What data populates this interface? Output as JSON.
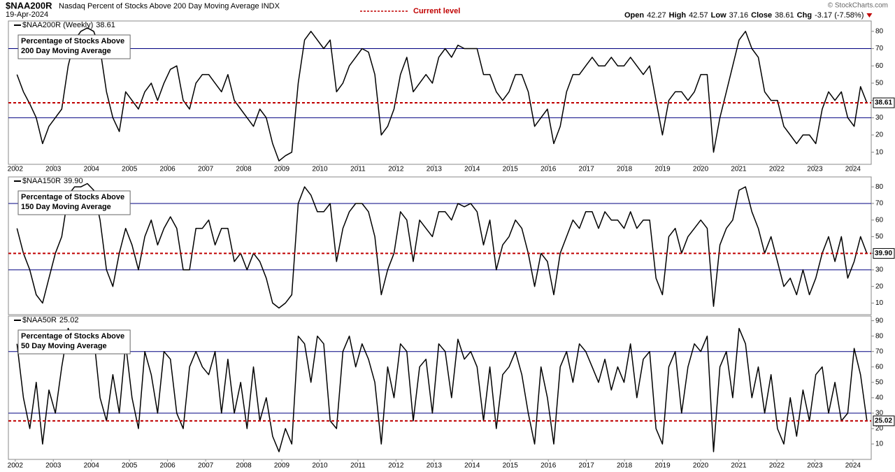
{
  "header": {
    "symbol": "$NAA200R",
    "description": "Nasdaq Percent of Stocks Above 200 Day Moving Average INDX",
    "date": "19-Apr-2024",
    "legend": "Current level",
    "stats": [
      {
        "label": "Open",
        "value": 42.27
      },
      {
        "label": "High",
        "value": 42.57
      },
      {
        "label": "Low",
        "value": 37.16
      },
      {
        "label": "Close",
        "value": 38.61
      }
    ],
    "change_label": "Chg",
    "change": "-3.17 (-7.58%)",
    "credit": "© StockCharts.com"
  },
  "chart_data": [
    {
      "type": "line",
      "name": "$NAA200R (Weekly)",
      "current_label": "38.61",
      "annotation": [
        "Percentage of Stocks Above",
        "200 Day Moving Average"
      ],
      "color": "#000000",
      "hlines": [
        30,
        70
      ],
      "hline_color": "#000080",
      "current_color": "#c00000",
      "xlim": [
        2001.82,
        2024.48
      ],
      "xticks": [
        2002,
        2003,
        2004,
        2005,
        2006,
        2007,
        2008,
        2009,
        2010,
        2011,
        2012,
        2013,
        2014,
        2015,
        2016,
        2017,
        2018,
        2019,
        2020,
        2021,
        2022,
        2023,
        2024
      ],
      "ylim": [
        3,
        86
      ],
      "yticks": [
        10,
        20,
        30,
        40,
        50,
        60,
        70,
        80
      ],
      "values": [
        55,
        45,
        38,
        30,
        15,
        25,
        30,
        35,
        60,
        75,
        80,
        82,
        80,
        70,
        45,
        30,
        22,
        45,
        40,
        35,
        45,
        50,
        40,
        50,
        58,
        60,
        40,
        35,
        50,
        55,
        55,
        50,
        45,
        55,
        40,
        35,
        30,
        25,
        35,
        30,
        15,
        5,
        8,
        10,
        50,
        75,
        80,
        75,
        70,
        75,
        45,
        50,
        60,
        65,
        70,
        68,
        55,
        20,
        25,
        35,
        55,
        65,
        45,
        50,
        55,
        50,
        65,
        70,
        65,
        72,
        70,
        70,
        70,
        55,
        55,
        45,
        40,
        45,
        55,
        55,
        45,
        25,
        30,
        35,
        15,
        25,
        45,
        55,
        55,
        60,
        65,
        60,
        60,
        65,
        60,
        60,
        65,
        60,
        55,
        60,
        40,
        20,
        40,
        45,
        45,
        40,
        45,
        55,
        55,
        10,
        30,
        45,
        60,
        75,
        80,
        70,
        65,
        45,
        40,
        40,
        25,
        20,
        15,
        20,
        20,
        15,
        35,
        45,
        40,
        45,
        30,
        25,
        48,
        38.61
      ]
    },
    {
      "type": "line",
      "name": "$NAA150R",
      "current_label": "39.90",
      "annotation": [
        "Percentage of Stocks Above",
        "150 Day Moving Average"
      ],
      "color": "#000000",
      "hlines": [
        30,
        70
      ],
      "hline_color": "#000080",
      "current_color": "#c00000",
      "xlim": [
        2001.82,
        2024.48
      ],
      "ylim": [
        3,
        86
      ],
      "yticks": [
        10,
        20,
        30,
        40,
        50,
        60,
        70,
        80
      ],
      "values": [
        55,
        40,
        30,
        15,
        10,
        25,
        40,
        50,
        75,
        80,
        80,
        82,
        78,
        60,
        30,
        20,
        40,
        55,
        45,
        30,
        50,
        60,
        45,
        55,
        62,
        55,
        30,
        30,
        55,
        55,
        60,
        45,
        55,
        55,
        35,
        40,
        30,
        40,
        35,
        25,
        10,
        7,
        10,
        15,
        70,
        80,
        75,
        65,
        65,
        70,
        35,
        55,
        65,
        70,
        70,
        65,
        50,
        15,
        30,
        40,
        65,
        60,
        35,
        60,
        55,
        50,
        65,
        65,
        60,
        70,
        68,
        70,
        65,
        45,
        60,
        30,
        45,
        50,
        60,
        55,
        40,
        20,
        40,
        35,
        15,
        40,
        50,
        60,
        55,
        65,
        65,
        55,
        65,
        60,
        60,
        55,
        65,
        55,
        60,
        60,
        25,
        15,
        50,
        55,
        40,
        50,
        55,
        60,
        55,
        8,
        45,
        55,
        60,
        78,
        80,
        65,
        55,
        40,
        50,
        35,
        20,
        25,
        15,
        30,
        15,
        25,
        40,
        50,
        35,
        50,
        25,
        35,
        50,
        39.9
      ]
    },
    {
      "type": "line",
      "name": "$NAA50R",
      "current_label": "25.02",
      "annotation": [
        "Percentage of Stocks Above",
        "50 Day Moving Average"
      ],
      "color": "#000000",
      "hlines": [
        30,
        70
      ],
      "hline_color": "#000080",
      "current_color": "#c00000",
      "xlim": [
        2001.82,
        2024.48
      ],
      "xticks": [
        2002,
        2003,
        2004,
        2005,
        2006,
        2007,
        2008,
        2009,
        2010,
        2011,
        2012,
        2013,
        2014,
        2015,
        2016,
        2017,
        2018,
        2019,
        2020,
        2021,
        2022,
        2023,
        2024
      ],
      "ylim": [
        0,
        93
      ],
      "yticks": [
        10,
        20,
        30,
        40,
        50,
        60,
        70,
        80,
        90
      ],
      "values": [
        75,
        40,
        20,
        50,
        10,
        45,
        30,
        60,
        85,
        75,
        80,
        70,
        80,
        40,
        25,
        55,
        30,
        75,
        40,
        20,
        70,
        55,
        30,
        70,
        65,
        30,
        20,
        60,
        70,
        60,
        55,
        70,
        30,
        65,
        30,
        50,
        20,
        60,
        25,
        40,
        15,
        5,
        20,
        10,
        80,
        75,
        50,
        80,
        75,
        25,
        20,
        70,
        80,
        60,
        75,
        65,
        50,
        10,
        60,
        40,
        75,
        70,
        25,
        60,
        65,
        30,
        75,
        70,
        40,
        78,
        65,
        70,
        60,
        25,
        60,
        20,
        55,
        60,
        70,
        55,
        30,
        10,
        60,
        40,
        10,
        60,
        70,
        50,
        75,
        70,
        60,
        50,
        65,
        45,
        60,
        50,
        75,
        40,
        65,
        70,
        20,
        10,
        60,
        70,
        30,
        60,
        75,
        70,
        80,
        5,
        60,
        70,
        40,
        85,
        75,
        40,
        60,
        30,
        55,
        20,
        10,
        40,
        15,
        45,
        25,
        55,
        60,
        30,
        50,
        25,
        30,
        72,
        55,
        25.02
      ]
    }
  ]
}
